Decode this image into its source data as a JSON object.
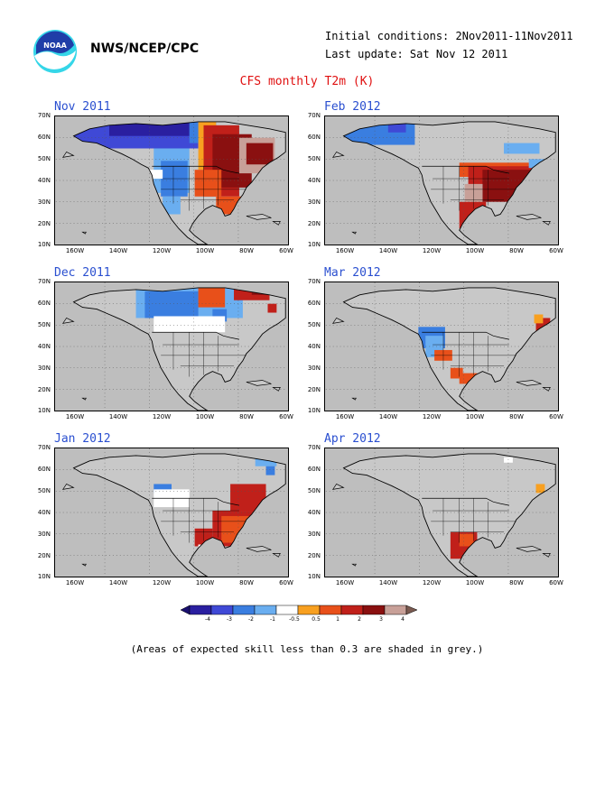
{
  "header": {
    "org": "NWS/NCEP/CPC",
    "initial_conditions": "Initial conditions: 2Nov2011-11Nov2011",
    "last_update": "Last update: Sat Nov 12 2011",
    "logo_text": "NOAA",
    "title": "CFS monthly T2m (K)"
  },
  "panels": [
    {
      "id": "nov",
      "title": "Nov 2011"
    },
    {
      "id": "feb",
      "title": "Feb 2012"
    },
    {
      "id": "dec",
      "title": "Dec 2011"
    },
    {
      "id": "mar",
      "title": "Mar 2012"
    },
    {
      "id": "jan",
      "title": "Jan 2012"
    },
    {
      "id": "apr",
      "title": "Apr 2012"
    }
  ],
  "lat_labels": [
    "70N",
    "60N",
    "50N",
    "40N",
    "30N",
    "20N",
    "10N"
  ],
  "lon_labels": [
    "160W",
    "140W",
    "120W",
    "100W",
    "80W",
    "60W"
  ],
  "colorbar": {
    "labels": [
      "-4",
      "-3",
      "-2",
      "-1",
      "-0.5",
      "0.5",
      "1",
      "2",
      "3",
      "4"
    ],
    "colors": [
      "#2a1fa0",
      "#3f49d6",
      "#3a7ee0",
      "#6aaef0",
      "#ffffff",
      "#f8a020",
      "#e8501a",
      "#c0201a",
      "#8a1010",
      "#c8a098"
    ]
  },
  "footnote": "(Areas of expected skill less than 0.3 are shaded in grey.)"
}
